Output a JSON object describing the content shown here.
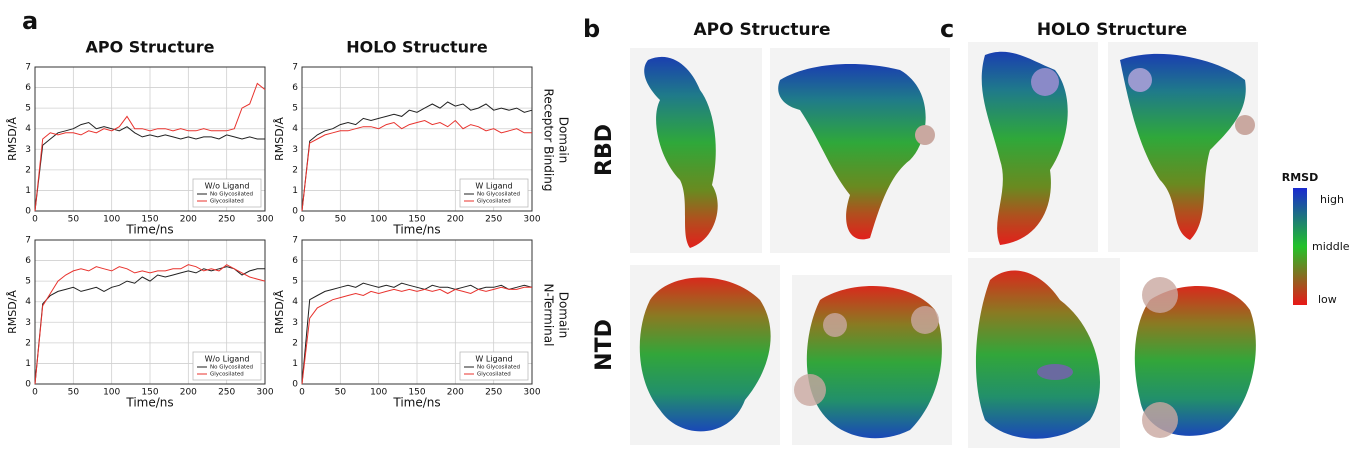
{
  "chart_data": [
    {
      "type": "line",
      "title": "APO Structure",
      "xlabel": "Time/ns",
      "ylabel": "RMSD/Å",
      "legend_title": "W/o Ligand",
      "xlim": [
        0,
        300
      ],
      "xticks": [
        0,
        50,
        100,
        150,
        200,
        250,
        300
      ],
      "ylim": [
        0,
        7
      ],
      "yticks": [
        0,
        1,
        2,
        3,
        4,
        5,
        6,
        7
      ],
      "grid": true,
      "legend": "lower right",
      "x": [
        0,
        10,
        20,
        30,
        40,
        50,
        60,
        70,
        80,
        90,
        100,
        110,
        120,
        130,
        140,
        150,
        160,
        170,
        180,
        190,
        200,
        210,
        220,
        230,
        240,
        250,
        260,
        270,
        280,
        290,
        300
      ],
      "series": [
        {
          "name": "No Glycosilated",
          "color": "#222222",
          "values": [
            0,
            3.2,
            3.5,
            3.8,
            3.9,
            4.0,
            4.2,
            4.3,
            4.0,
            4.1,
            4.0,
            3.9,
            4.1,
            3.8,
            3.6,
            3.7,
            3.6,
            3.7,
            3.6,
            3.5,
            3.6,
            3.5,
            3.6,
            3.6,
            3.5,
            3.7,
            3.6,
            3.5,
            3.6,
            3.5,
            3.5
          ]
        },
        {
          "name": "Glycosilated",
          "color": "#e8332e",
          "values": [
            0,
            3.5,
            3.8,
            3.7,
            3.8,
            3.8,
            3.7,
            3.9,
            3.8,
            4.0,
            3.9,
            4.1,
            4.6,
            4.0,
            4.0,
            3.9,
            4.0,
            4.0,
            3.9,
            4.0,
            3.9,
            3.9,
            4.0,
            3.9,
            3.9,
            3.9,
            4.0,
            5.0,
            5.2,
            6.2,
            5.9
          ]
        }
      ]
    },
    {
      "type": "line",
      "title": "HOLO Structure",
      "xlabel": "Time/ns",
      "ylabel": "RMSD/Å",
      "legend_title": "W Ligand",
      "xlim": [
        0,
        300
      ],
      "xticks": [
        0,
        50,
        100,
        150,
        200,
        250,
        300
      ],
      "ylim": [
        0,
        7
      ],
      "yticks": [
        0,
        1,
        2,
        3,
        4,
        5,
        6,
        7
      ],
      "grid": true,
      "legend": "lower right",
      "x": [
        0,
        10,
        20,
        30,
        40,
        50,
        60,
        70,
        80,
        90,
        100,
        110,
        120,
        130,
        140,
        150,
        160,
        170,
        180,
        190,
        200,
        210,
        220,
        230,
        240,
        250,
        260,
        270,
        280,
        290,
        300
      ],
      "series": [
        {
          "name": "No Glycosilated",
          "color": "#222222",
          "values": [
            0,
            3.4,
            3.7,
            3.9,
            4.0,
            4.2,
            4.3,
            4.2,
            4.5,
            4.4,
            4.5,
            4.6,
            4.7,
            4.6,
            4.9,
            4.8,
            5.0,
            5.2,
            5.0,
            5.3,
            5.1,
            5.2,
            4.9,
            5.0,
            5.2,
            4.9,
            5.0,
            4.9,
            5.0,
            4.8,
            4.9
          ]
        },
        {
          "name": "Glycosilated",
          "color": "#e8332e",
          "values": [
            0,
            3.3,
            3.5,
            3.7,
            3.8,
            3.9,
            3.9,
            4.0,
            4.1,
            4.1,
            4.0,
            4.2,
            4.3,
            4.0,
            4.2,
            4.3,
            4.4,
            4.2,
            4.3,
            4.1,
            4.4,
            4.0,
            4.2,
            4.1,
            3.9,
            4.0,
            3.8,
            3.9,
            4.0,
            3.8,
            3.8
          ]
        }
      ]
    },
    {
      "type": "line",
      "xlabel": "Time/ns",
      "ylabel": "RMSD/Å",
      "legend_title": "W/o Ligand",
      "xlim": [
        0,
        300
      ],
      "xticks": [
        0,
        50,
        100,
        150,
        200,
        250,
        300
      ],
      "ylim": [
        0,
        7
      ],
      "yticks": [
        0,
        1,
        2,
        3,
        4,
        5,
        6,
        7
      ],
      "grid": true,
      "legend": "lower right",
      "x": [
        0,
        10,
        20,
        30,
        40,
        50,
        60,
        70,
        80,
        90,
        100,
        110,
        120,
        130,
        140,
        150,
        160,
        170,
        180,
        190,
        200,
        210,
        220,
        230,
        240,
        250,
        260,
        270,
        280,
        290,
        300
      ],
      "series": [
        {
          "name": "No Glycosilated",
          "color": "#222222",
          "values": [
            0,
            3.9,
            4.3,
            4.5,
            4.6,
            4.7,
            4.5,
            4.6,
            4.7,
            4.5,
            4.7,
            4.8,
            5.0,
            4.9,
            5.2,
            5.0,
            5.3,
            5.2,
            5.3,
            5.4,
            5.5,
            5.4,
            5.6,
            5.5,
            5.6,
            5.7,
            5.6,
            5.3,
            5.5,
            5.6,
            5.6
          ]
        },
        {
          "name": "Glycosilated",
          "color": "#e8332e",
          "values": [
            0,
            3.8,
            4.4,
            5.0,
            5.3,
            5.5,
            5.6,
            5.5,
            5.7,
            5.6,
            5.5,
            5.7,
            5.6,
            5.4,
            5.5,
            5.4,
            5.5,
            5.5,
            5.6,
            5.6,
            5.8,
            5.7,
            5.5,
            5.6,
            5.5,
            5.8,
            5.6,
            5.4,
            5.2,
            5.1,
            5.0
          ]
        }
      ]
    },
    {
      "type": "line",
      "xlabel": "Time/ns",
      "ylabel": "RMSD/Å",
      "legend_title": "W Ligand",
      "xlim": [
        0,
        300
      ],
      "xticks": [
        0,
        50,
        100,
        150,
        200,
        250,
        300
      ],
      "ylim": [
        0,
        7
      ],
      "yticks": [
        0,
        1,
        2,
        3,
        4,
        5,
        6,
        7
      ],
      "grid": true,
      "legend": "lower right",
      "x": [
        0,
        10,
        20,
        30,
        40,
        50,
        60,
        70,
        80,
        90,
        100,
        110,
        120,
        130,
        140,
        150,
        160,
        170,
        180,
        190,
        200,
        210,
        220,
        230,
        240,
        250,
        260,
        270,
        280,
        290,
        300
      ],
      "series": [
        {
          "name": "No Glycosilated",
          "color": "#222222",
          "values": [
            0,
            4.1,
            4.3,
            4.5,
            4.6,
            4.7,
            4.8,
            4.7,
            4.9,
            4.8,
            4.7,
            4.8,
            4.7,
            4.9,
            4.8,
            4.7,
            4.6,
            4.8,
            4.7,
            4.7,
            4.6,
            4.7,
            4.8,
            4.6,
            4.7,
            4.7,
            4.8,
            4.6,
            4.7,
            4.8,
            4.7
          ]
        },
        {
          "name": "Glycosilated",
          "color": "#e8332e",
          "values": [
            0,
            3.2,
            3.7,
            3.9,
            4.1,
            4.2,
            4.3,
            4.4,
            4.3,
            4.5,
            4.4,
            4.5,
            4.6,
            4.5,
            4.6,
            4.5,
            4.6,
            4.5,
            4.6,
            4.4,
            4.6,
            4.5,
            4.4,
            4.6,
            4.5,
            4.6,
            4.7,
            4.6,
            4.6,
            4.7,
            4.7
          ]
        }
      ]
    }
  ],
  "panels": {
    "a": "a",
    "b": "b",
    "c": "c",
    "apo_title": "APO Structure",
    "holo_title": "HOLO Structure",
    "rbd": "RBD",
    "ntd": "NTD",
    "rbd_side": [
      "Receptor Binding",
      "Domain"
    ],
    "ntd_side": [
      "N-Terminal",
      "Domain"
    ],
    "colorbar": {
      "title": "RMSD",
      "high": "high",
      "middle": "middle",
      "low": "low"
    }
  }
}
